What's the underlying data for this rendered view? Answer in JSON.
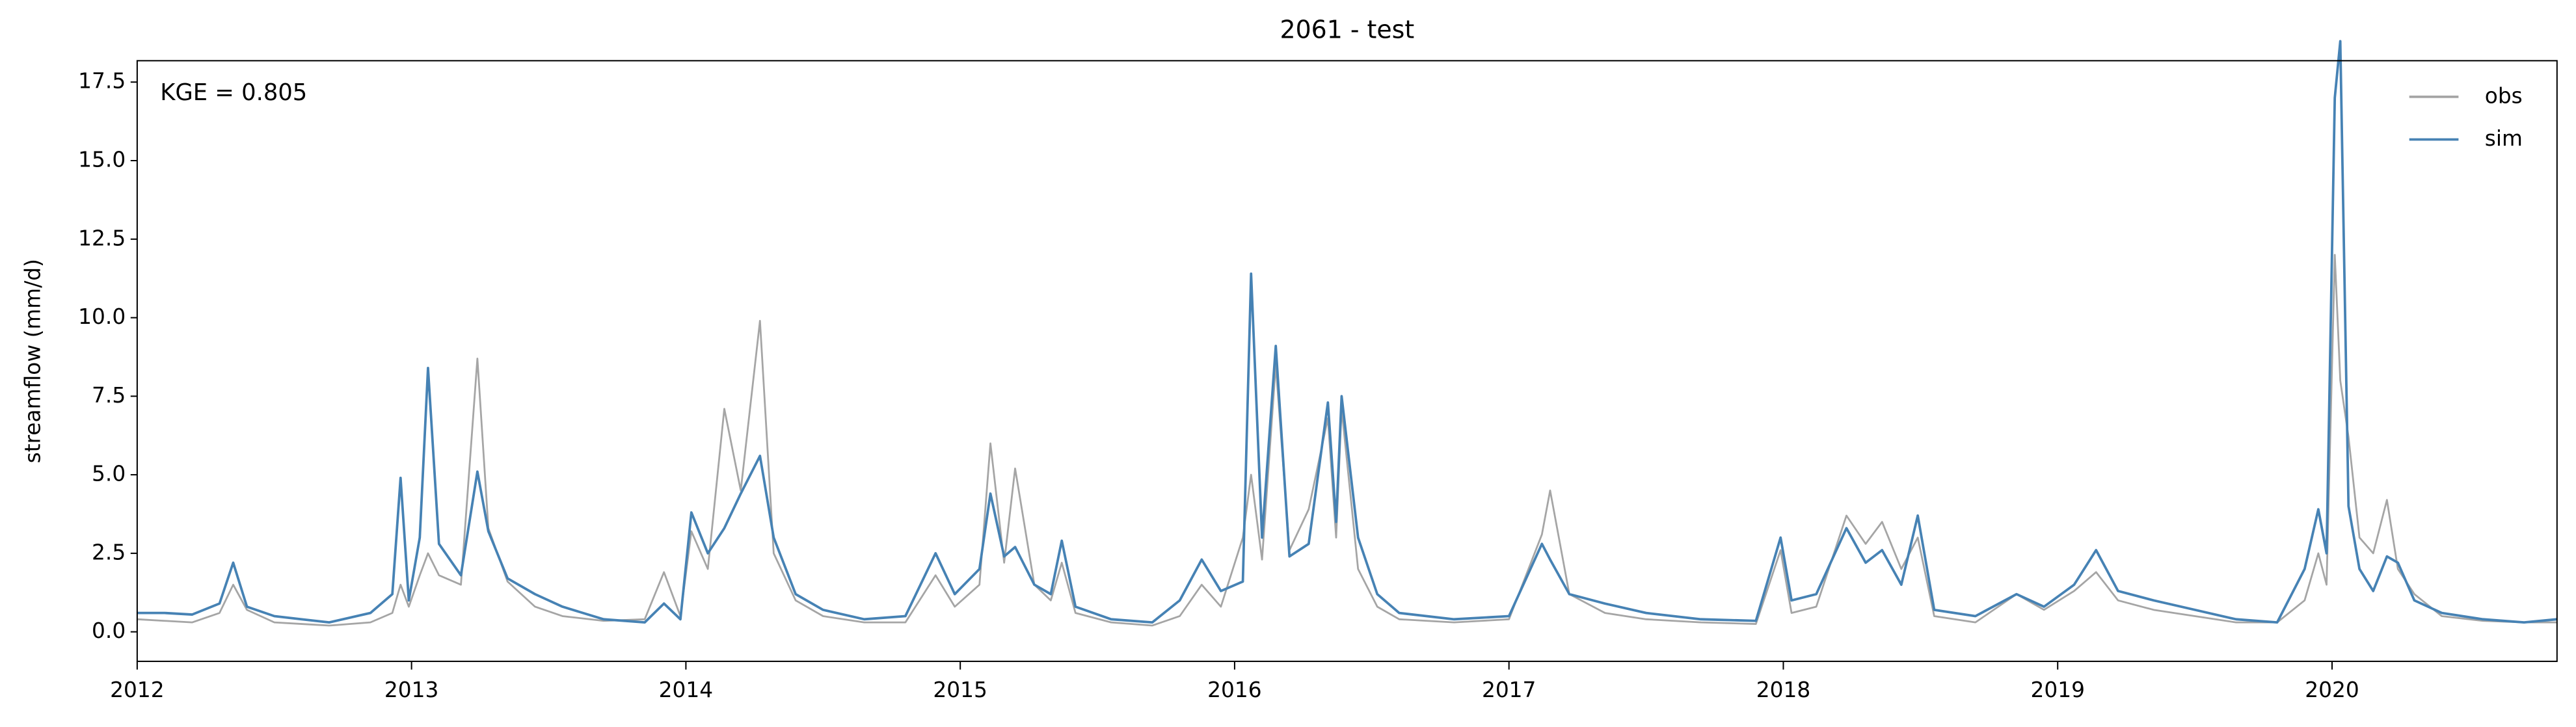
{
  "chart_data": {
    "type": "line",
    "title": "2061 - test",
    "ylabel": "streamflow (mm/d)",
    "annotation": "KGE = 0.805",
    "x": [
      2012.0,
      2012.1,
      2012.2,
      2012.3,
      2012.35,
      2012.4,
      2012.5,
      2012.6,
      2012.7,
      2012.85,
      2012.93,
      2012.96,
      2012.99,
      2013.03,
      2013.06,
      2013.1,
      2013.18,
      2013.24,
      2013.28,
      2013.35,
      2013.45,
      2013.55,
      2013.7,
      2013.85,
      2013.92,
      2013.98,
      2014.02,
      2014.08,
      2014.14,
      2014.2,
      2014.27,
      2014.32,
      2014.4,
      2014.5,
      2014.65,
      2014.8,
      2014.91,
      2014.98,
      2015.07,
      2015.11,
      2015.16,
      2015.2,
      2015.27,
      2015.33,
      2015.37,
      2015.42,
      2015.55,
      2015.7,
      2015.8,
      2015.88,
      2015.95,
      2016.03,
      2016.06,
      2016.1,
      2016.15,
      2016.2,
      2016.27,
      2016.34,
      2016.37,
      2016.39,
      2016.45,
      2016.52,
      2016.6,
      2016.8,
      2017.0,
      2017.12,
      2017.15,
      2017.22,
      2017.35,
      2017.5,
      2017.7,
      2017.9,
      2017.99,
      2018.03,
      2018.12,
      2018.23,
      2018.3,
      2018.36,
      2018.43,
      2018.49,
      2018.55,
      2018.7,
      2018.85,
      2018.95,
      2019.06,
      2019.14,
      2019.22,
      2019.35,
      2019.5,
      2019.65,
      2019.8,
      2019.9,
      2019.95,
      2019.98,
      2020.01,
      2020.03,
      2020.06,
      2020.1,
      2020.15,
      2020.2,
      2020.24,
      2020.3,
      2020.4,
      2020.55,
      2020.7,
      2020.82
    ],
    "series": [
      {
        "name": "obs",
        "color": "#a5a5a5",
        "values": [
          0.4,
          0.35,
          0.3,
          0.6,
          1.5,
          0.7,
          0.3,
          0.25,
          0.2,
          0.3,
          0.6,
          1.5,
          0.8,
          1.8,
          2.5,
          1.8,
          1.5,
          8.7,
          3.3,
          1.6,
          0.8,
          0.5,
          0.35,
          0.4,
          1.9,
          0.5,
          3.2,
          2.0,
          7.1,
          4.5,
          9.9,
          2.5,
          1.0,
          0.5,
          0.3,
          0.3,
          1.8,
          0.8,
          1.5,
          6.0,
          2.2,
          5.2,
          1.5,
          1.0,
          2.2,
          0.6,
          0.3,
          0.2,
          0.5,
          1.5,
          0.8,
          3.0,
          5.0,
          2.3,
          8.5,
          2.6,
          3.9,
          6.8,
          3.0,
          7.1,
          2.0,
          0.8,
          0.4,
          0.3,
          0.4,
          3.1,
          4.5,
          1.2,
          0.6,
          0.4,
          0.3,
          0.25,
          2.6,
          0.6,
          0.8,
          3.7,
          2.8,
          3.5,
          2.0,
          3.0,
          0.5,
          0.3,
          1.2,
          0.7,
          1.3,
          1.9,
          1.0,
          0.7,
          0.5,
          0.3,
          0.3,
          1.0,
          2.5,
          1.5,
          12.0,
          8.0,
          6.2,
          3.0,
          2.5,
          4.2,
          2.0,
          1.2,
          0.5,
          0.35,
          0.3,
          0.3
        ]
      },
      {
        "name": "sim",
        "color": "#4682b4",
        "values": [
          0.6,
          0.6,
          0.55,
          0.9,
          2.2,
          0.8,
          0.5,
          0.4,
          0.3,
          0.6,
          1.2,
          4.9,
          1.0,
          3.0,
          8.4,
          2.8,
          1.8,
          5.1,
          3.2,
          1.7,
          1.2,
          0.8,
          0.4,
          0.3,
          0.9,
          0.4,
          3.8,
          2.5,
          3.3,
          4.4,
          5.6,
          3.0,
          1.2,
          0.7,
          0.4,
          0.5,
          2.5,
          1.2,
          2.0,
          4.4,
          2.4,
          2.7,
          1.5,
          1.2,
          2.9,
          0.8,
          0.4,
          0.3,
          1.0,
          2.3,
          1.3,
          1.6,
          11.4,
          3.0,
          9.1,
          2.4,
          2.8,
          7.3,
          3.5,
          7.5,
          3.0,
          1.2,
          0.6,
          0.4,
          0.5,
          2.8,
          2.3,
          1.2,
          0.9,
          0.6,
          0.4,
          0.35,
          3.0,
          1.0,
          1.2,
          3.3,
          2.2,
          2.6,
          1.5,
          3.7,
          0.7,
          0.5,
          1.2,
          0.8,
          1.5,
          2.6,
          1.3,
          1.0,
          0.7,
          0.4,
          0.3,
          2.0,
          3.9,
          2.5,
          17.0,
          18.8,
          4.0,
          2.0,
          1.3,
          2.4,
          2.2,
          1.0,
          0.6,
          0.4,
          0.3,
          0.4
        ]
      }
    ],
    "xlim": [
      2012,
      2020.82
    ],
    "xticks": [
      2012,
      2013,
      2014,
      2015,
      2016,
      2017,
      2018,
      2019,
      2020
    ],
    "ylim": [
      -0.94,
      18.18
    ],
    "yticks": [
      {
        "value": 0,
        "label": "0.0"
      },
      2.5,
      {
        "value": 5,
        "label": "5.0"
      },
      7.5,
      {
        "value": 10,
        "label": "10.0"
      },
      12.5,
      {
        "value": 15,
        "label": "15.0"
      },
      17.5
    ],
    "legend": "upper right",
    "grid": false
  }
}
